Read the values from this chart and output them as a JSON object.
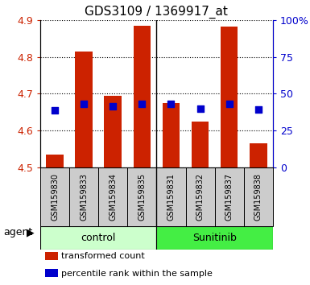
{
  "title": "GDS3109 / 1369917_at",
  "samples": [
    "GSM159830",
    "GSM159833",
    "GSM159834",
    "GSM159835",
    "GSM159831",
    "GSM159832",
    "GSM159837",
    "GSM159838"
  ],
  "bar_values": [
    4.535,
    4.815,
    4.695,
    4.885,
    4.675,
    4.625,
    4.883,
    4.565
  ],
  "blue_dot_values": [
    4.655,
    4.672,
    4.665,
    4.672,
    4.672,
    4.66,
    4.672,
    4.658
  ],
  "ymin": 4.5,
  "ymax": 4.9,
  "yticks": [
    4.5,
    4.6,
    4.7,
    4.8,
    4.9
  ],
  "right_yticks": [
    0,
    25,
    50,
    75,
    100
  ],
  "right_yticklabels": [
    "0",
    "25",
    "50",
    "75",
    "100%"
  ],
  "groups": [
    {
      "label": "control",
      "span": [
        0,
        3
      ],
      "color": "#ccffcc"
    },
    {
      "label": "Sunitinib",
      "span": [
        4,
        7
      ],
      "color": "#44ee44"
    }
  ],
  "bar_color": "#cc2200",
  "dot_color": "#0000cc",
  "bar_bottom": 4.5,
  "bar_width": 0.6,
  "dot_size": 30,
  "grid_linestyle": "dotted",
  "background_color": "#ffffff",
  "plot_bg_color": "#ffffff",
  "xlabel_bg_color": "#cccccc",
  "tick_color_left": "#cc2200",
  "tick_color_right": "#0000cc",
  "legend_items": [
    "transformed count",
    "percentile rank within the sample"
  ],
  "legend_colors": [
    "#cc2200",
    "#0000cc"
  ],
  "agent_label": "agent",
  "figsize": [
    3.85,
    3.54
  ],
  "dpi": 100
}
